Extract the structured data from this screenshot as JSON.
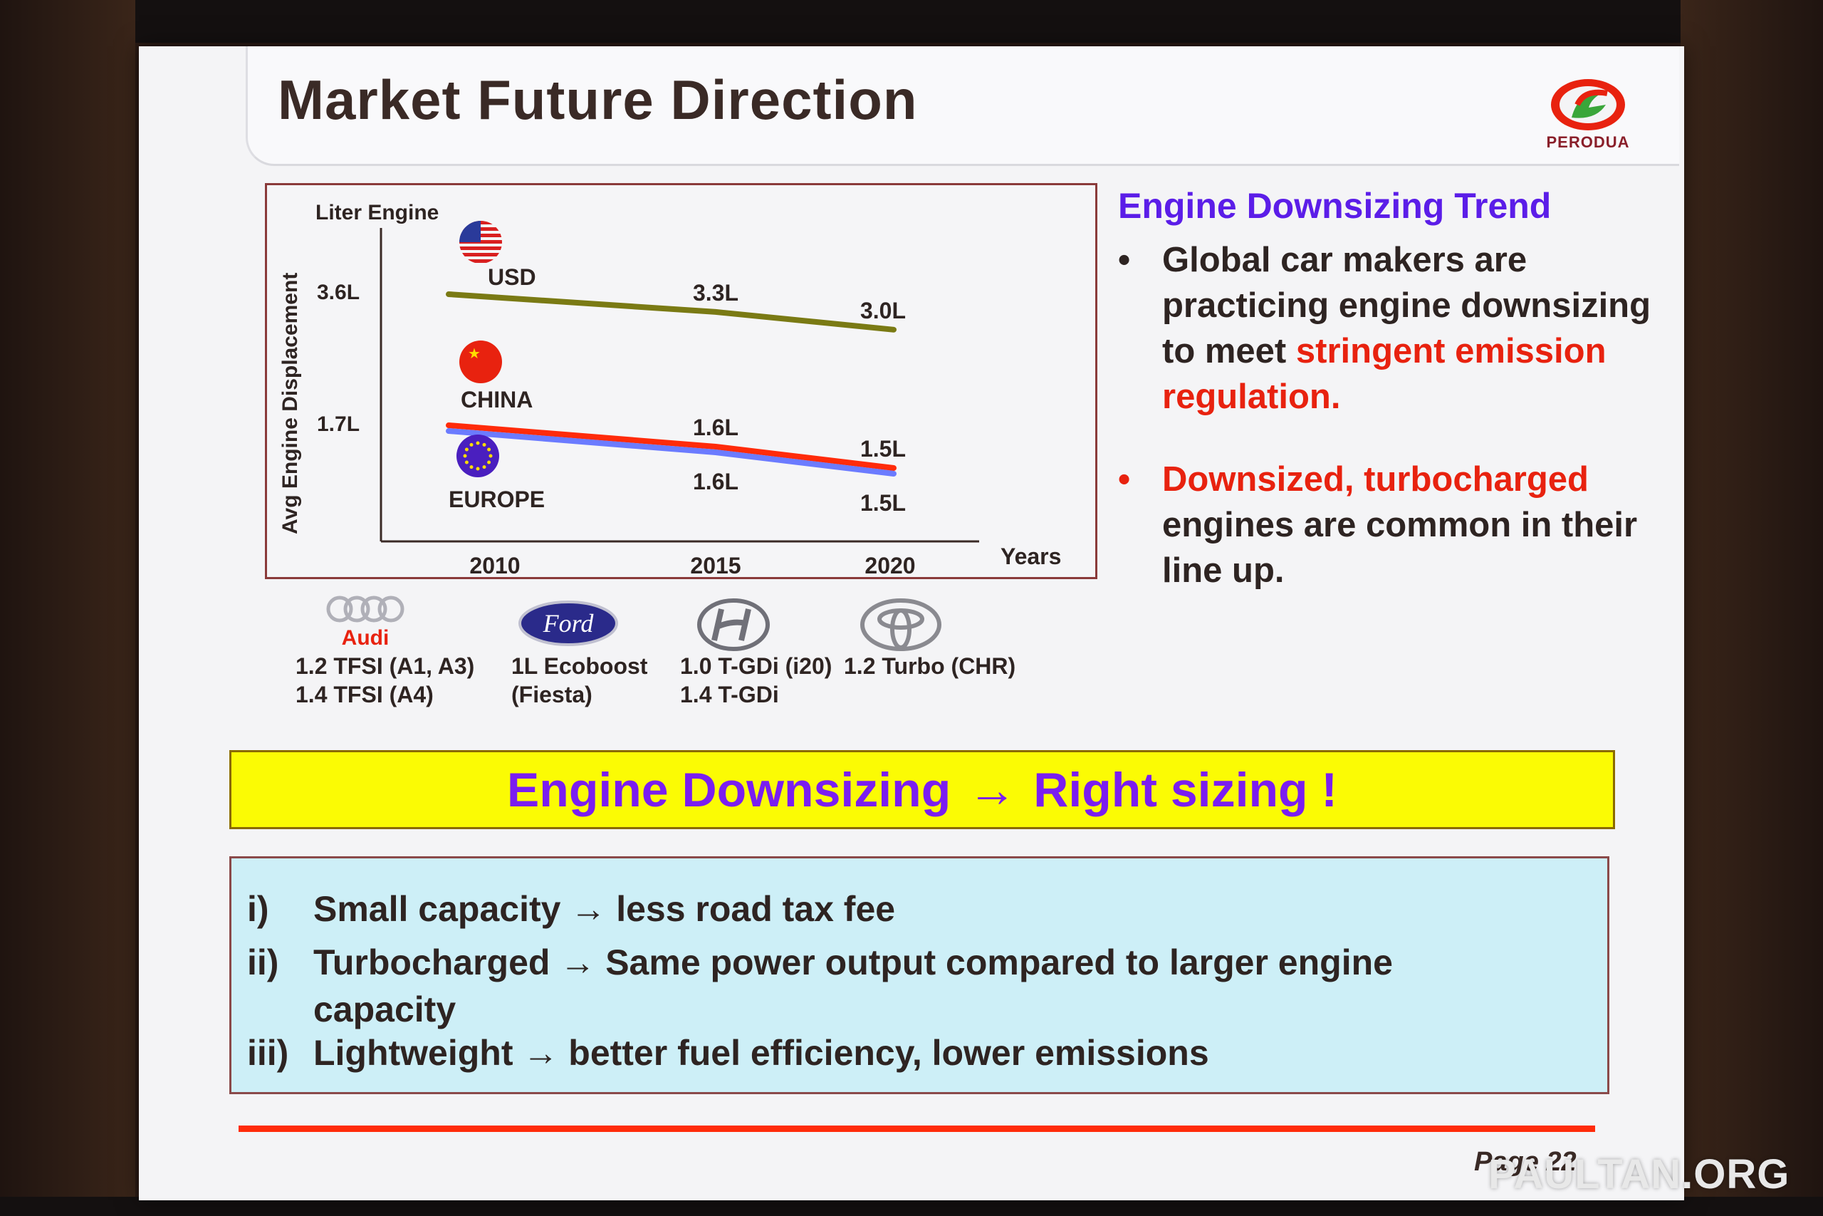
{
  "slide": {
    "title": "Market Future Direction",
    "logo_text": "PERODUA",
    "page_label": "Page 22",
    "watermark": "PAULTAN.ORG"
  },
  "chart_data": {
    "type": "line",
    "title": "",
    "ylabel": "Avg Engine Displacement",
    "y_unit_label": "Liter Engine",
    "xlabel": "Years",
    "x": [
      2010,
      2015,
      2020
    ],
    "y_ticks": [
      "3.6L",
      "1.7L"
    ],
    "series": [
      {
        "name": "USD",
        "color": "#7a7a14",
        "values": [
          3.6,
          3.3,
          3.0
        ],
        "labels": [
          "",
          "3.3L",
          "3.0L"
        ],
        "flag": "usa-flag-icon"
      },
      {
        "name": "CHINA",
        "color": "#ff2b0a",
        "values": [
          1.7,
          1.6,
          1.5
        ],
        "labels": [
          "",
          "1.6L",
          "1.5L"
        ],
        "flag": "china-flag-icon"
      },
      {
        "name": "EUROPE",
        "color": "#6b7bff",
        "values": [
          1.7,
          1.6,
          1.5
        ],
        "labels": [
          "",
          "1.6L",
          "1.5L"
        ],
        "flag": "eu-flag-icon"
      }
    ]
  },
  "trend": {
    "title": "Engine Downsizing Trend",
    "bullet_char": "•",
    "b1_text": "Global car makers are practicing engine downsizing to meet",
    "b1_highlight": "stringent emission regulation.",
    "b2_highlight": "Downsized, turbocharged",
    "b2_text": "engines are common in their line up."
  },
  "brands": [
    {
      "name": "Audi",
      "logo_text": "Audi",
      "line1": "1.2 TFSI  (A1, A3)",
      "line2": "1.4 TFSI (A4)"
    },
    {
      "name": "Ford",
      "logo_text": "Ford",
      "line1": "1L Ecoboost",
      "line2": "(Fiesta)"
    },
    {
      "name": "Hyundai",
      "logo_text": "",
      "line1": "1.0 T-GDi (i20)",
      "line2": "1.4 T-GDi"
    },
    {
      "name": "Toyota",
      "logo_text": "",
      "line1": "1.2 Turbo (CHR)",
      "line2": ""
    }
  ],
  "highlight": {
    "left": "Engine Downsizing",
    "arrow": "→",
    "right": "Right sizing !"
  },
  "benefits": [
    {
      "num": "i)",
      "text": "Small capacity → less road tax fee"
    },
    {
      "num": "ii)",
      "text": "Turbocharged → Same power output compared to larger engine capacity"
    },
    {
      "num": "iii)",
      "text": "Lightweight → better fuel efficiency, lower emissions"
    }
  ]
}
